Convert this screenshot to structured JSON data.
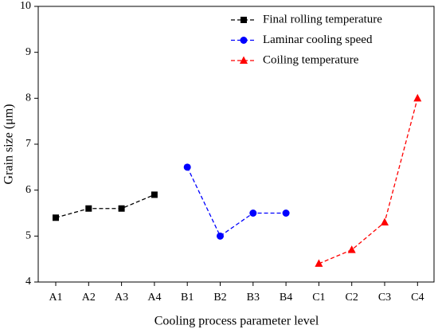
{
  "chart_data": {
    "type": "line",
    "xlabel": "Cooling process parameter level",
    "ylabel": "Grain size (μm)",
    "categories": [
      "A1",
      "A2",
      "A3",
      "A4",
      "B1",
      "B2",
      "B3",
      "B4",
      "C1",
      "C2",
      "C3",
      "C4"
    ],
    "series": [
      {
        "name": "Final rolling temperature",
        "color": "#000000",
        "marker": "square",
        "linestyle": "dashed",
        "values": [
          5.4,
          5.6,
          5.6,
          5.9,
          null,
          null,
          null,
          null,
          null,
          null,
          null,
          null
        ]
      },
      {
        "name": "Laminar cooling speed",
        "color": "#0000ff",
        "marker": "circle",
        "linestyle": "dashed",
        "values": [
          null,
          null,
          null,
          null,
          6.5,
          5.0,
          5.5,
          5.5,
          null,
          null,
          null,
          null
        ]
      },
      {
        "name": "Coiling temperature",
        "color": "#ff0000",
        "marker": "triangle",
        "linestyle": "dashed",
        "values": [
          null,
          null,
          null,
          null,
          null,
          null,
          null,
          null,
          4.4,
          4.7,
          5.3,
          8.0
        ]
      }
    ],
    "ylim": [
      4,
      10
    ],
    "yticks": [
      4,
      5,
      6,
      7,
      8,
      9,
      10
    ],
    "legend": "upper right"
  }
}
